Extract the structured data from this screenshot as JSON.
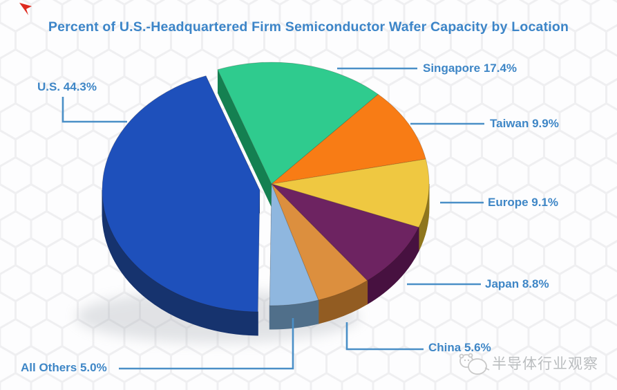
{
  "title": "Percent of U.S.-Headquartered Firm Semiconductor Wafer Capacity by Location",
  "watermark": {
    "logo": "panda-doodle-logo",
    "text": "半导体行业观察"
  },
  "decorations": {
    "corner_mark_color": "#de2a1f",
    "title_color": "#3c85c8",
    "label_color": "#3e86c6",
    "leader_line_color": "#4a8fc7",
    "background_pattern": "faint-hexagon-honeycomb"
  },
  "chart_data": {
    "type": "pie",
    "style": "3d-exploded",
    "title": "Percent of U.S.-Headquartered Firm Semiconductor Wafer Capacity by Location",
    "unit": "percent",
    "start_angle_deg": -20,
    "direction": "clockwise",
    "legend_position": "callout-labels",
    "slices": [
      {
        "label": "Singapore",
        "value": 17.4,
        "display": "Singapore 17.4%",
        "color": "#2fcb8e",
        "side_color": "#148051",
        "exploded": false
      },
      {
        "label": "Taiwan",
        "value": 9.9,
        "display": "Taiwan 9.9%",
        "color": "#f87c15",
        "side_color": "#a8500d",
        "exploded": false
      },
      {
        "label": "Europe",
        "value": 9.1,
        "display": "Europe 9.1%",
        "color": "#efc841",
        "side_color": "#8f761d",
        "exploded": false
      },
      {
        "label": "Japan",
        "value": 8.8,
        "display": "Japan 8.8%",
        "color": "#6d2361",
        "side_color": "#471140",
        "exploded": false
      },
      {
        "label": "China",
        "value": 5.6,
        "display": "China 5.6%",
        "color": "#dc8f3e",
        "side_color": "#925c22",
        "exploded": false
      },
      {
        "label": "All Others",
        "value": 5.0,
        "display": "All Others 5.0%",
        "color": "#8fb7df",
        "side_color": "#506f8a",
        "exploded": false
      },
      {
        "label": "U.S.",
        "value": 44.3,
        "display": "U.S. 44.3%",
        "color": "#1e50bb",
        "side_color": "#16336e",
        "exploded": true
      }
    ]
  }
}
